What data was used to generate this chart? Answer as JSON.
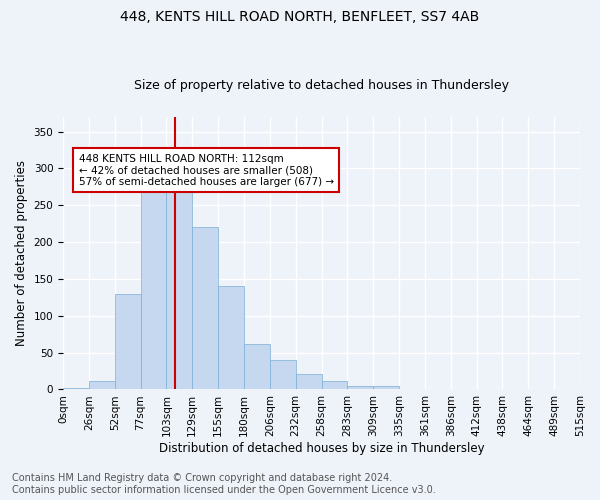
{
  "title": "448, KENTS HILL ROAD NORTH, BENFLEET, SS7 4AB",
  "subtitle": "Size of property relative to detached houses in Thundersley",
  "xlabel": "Distribution of detached houses by size in Thundersley",
  "ylabel": "Number of detached properties",
  "categories": [
    "0sqm",
    "26sqm",
    "52sqm",
    "77sqm",
    "103sqm",
    "129sqm",
    "155sqm",
    "180sqm",
    "206sqm",
    "232sqm",
    "258sqm",
    "283sqm",
    "309sqm",
    "335sqm",
    "361sqm",
    "386sqm",
    "412sqm",
    "438sqm",
    "464sqm",
    "489sqm",
    "515sqm"
  ],
  "values": [
    2,
    12,
    130,
    268,
    290,
    220,
    140,
    62,
    40,
    21,
    11,
    5,
    5,
    1,
    0,
    0,
    0,
    0,
    0,
    1
  ],
  "bar_color": "#c5d8f0",
  "bar_edge_color": "#7bafd4",
  "property_line_color": "#cc0000",
  "annotation_text": "448 KENTS HILL ROAD NORTH: 112sqm\n← 42% of detached houses are smaller (508)\n57% of semi-detached houses are larger (677) →",
  "annotation_box_color": "#ffffff",
  "annotation_box_edge_color": "#cc0000",
  "footer_line1": "Contains HM Land Registry data © Crown copyright and database right 2024.",
  "footer_line2": "Contains public sector information licensed under the Open Government Licence v3.0.",
  "ylim": [
    0,
    370
  ],
  "yticks": [
    0,
    50,
    100,
    150,
    200,
    250,
    300,
    350
  ],
  "background_color": "#eef2f9",
  "plot_background_color": "#eef2f9",
  "grid_color": "#ffffff",
  "title_fontsize": 10,
  "subtitle_fontsize": 9,
  "axis_label_fontsize": 8.5,
  "tick_fontsize": 7.5,
  "annotation_fontsize": 7.5,
  "footer_fontsize": 7.0,
  "property_sqm": 112,
  "total_sqm": 515
}
